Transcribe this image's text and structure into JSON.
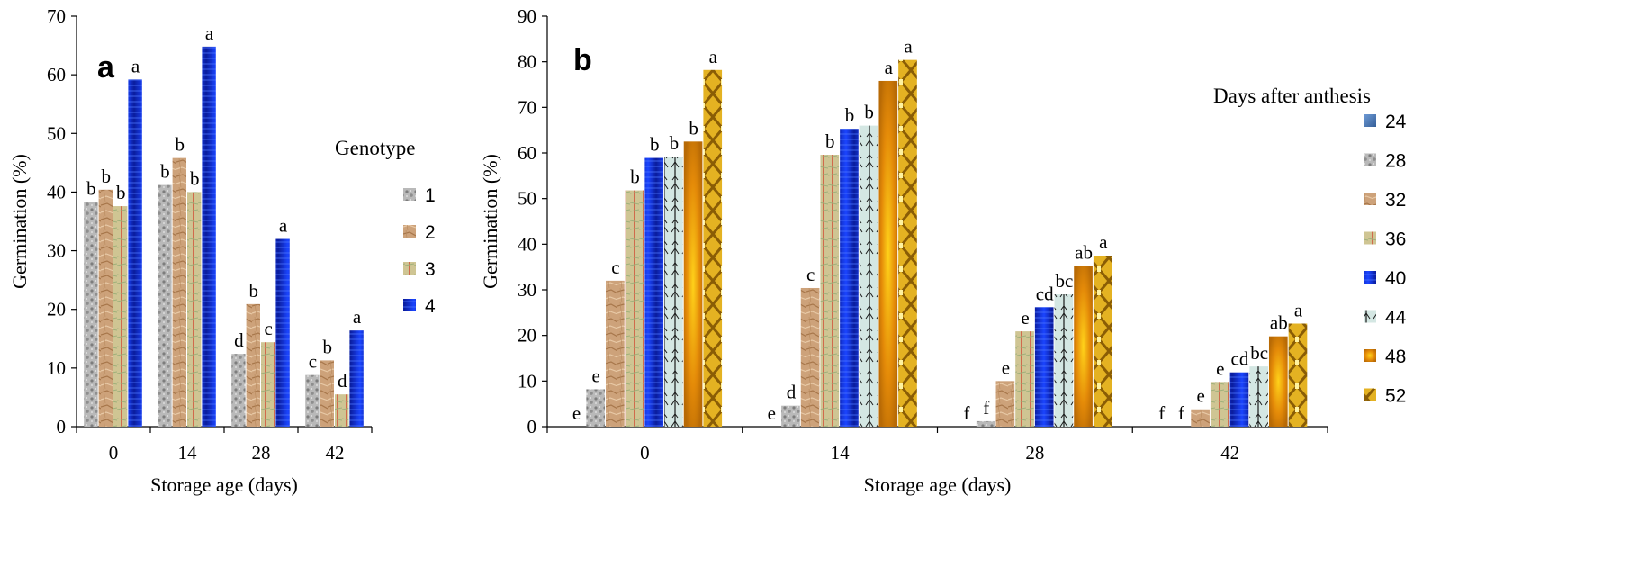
{
  "chart_data": [
    {
      "type": "bar",
      "panel_label": "a",
      "categories": [
        "0",
        "14",
        "28",
        "42"
      ],
      "xlabel": "Storage age (days)",
      "ylabel": "Germination (%)",
      "ylim": [
        0,
        70
      ],
      "yticks": [
        "0",
        "10",
        "20",
        "30",
        "40",
        "50",
        "60",
        "70"
      ],
      "grid": false,
      "legend_title": "Genotype",
      "legend_position": "right",
      "series": [
        {
          "name": "1",
          "values": [
            38.3,
            41.2,
            12.4,
            8.8
          ],
          "letters": [
            "b",
            "b",
            "d",
            "c"
          ],
          "color": "#a4a4a4"
        },
        {
          "name": "2",
          "values": [
            40.4,
            45.8,
            20.9,
            11.3
          ],
          "letters": [
            "b",
            "b",
            "b",
            "b"
          ],
          "color": "#c79c6f"
        },
        {
          "name": "3",
          "values": [
            37.6,
            40.0,
            14.4,
            5.5
          ],
          "letters": [
            "b",
            "b",
            "c",
            "d"
          ],
          "color": "#c9c08a"
        },
        {
          "name": "4",
          "values": [
            59.2,
            64.8,
            32.0,
            16.4
          ],
          "letters": [
            "a",
            "a",
            "a",
            "a"
          ],
          "color": "#0b32d6"
        }
      ]
    },
    {
      "type": "bar",
      "panel_label": "b",
      "categories": [
        "0",
        "14",
        "28",
        "42"
      ],
      "xlabel": "Storage age (days)",
      "ylabel": "Germination (%)",
      "ylim": [
        0,
        90
      ],
      "yticks": [
        "0",
        "10",
        "20",
        "30",
        "40",
        "50",
        "60",
        "70",
        "80",
        "90"
      ],
      "grid": false,
      "legend_title": "Days after anthesis",
      "legend_position": "right",
      "series": [
        {
          "name": "24",
          "values": [
            0,
            0,
            0,
            0
          ],
          "letters": [
            "e",
            "e",
            "f",
            "f"
          ],
          "color": "#4f81bd"
        },
        {
          "name": "28",
          "values": [
            8.2,
            4.6,
            1.2,
            0
          ],
          "letters": [
            "e",
            "d",
            "f",
            "f"
          ],
          "color": "#a6a6a6"
        },
        {
          "name": "32",
          "values": [
            32.0,
            30.4,
            10.0,
            3.8
          ],
          "letters": [
            "c",
            "c",
            "e",
            "e"
          ],
          "color": "#c79c6f"
        },
        {
          "name": "36",
          "values": [
            51.8,
            59.6,
            20.9,
            9.8
          ],
          "letters": [
            "b",
            "b",
            "e",
            "e"
          ],
          "color": "#c9c08a"
        },
        {
          "name": "40",
          "values": [
            58.9,
            65.3,
            26.2,
            11.9
          ],
          "letters": [
            "b",
            "b",
            "cd",
            "cd"
          ],
          "color": "#0b32d6"
        },
        {
          "name": "44",
          "values": [
            59.2,
            66.0,
            29.0,
            13.2
          ],
          "letters": [
            "b",
            "b",
            "bc",
            "bc"
          ],
          "color": "#cfe3e0"
        },
        {
          "name": "48",
          "values": [
            62.5,
            75.8,
            35.2,
            19.8
          ],
          "letters": [
            "b",
            "a",
            "ab",
            "ab"
          ],
          "color": "#e49a10"
        },
        {
          "name": "52",
          "values": [
            78.2,
            80.4,
            37.5,
            22.6
          ],
          "letters": [
            "a",
            "a",
            "a",
            "a"
          ],
          "color": "#d9ac1c"
        }
      ]
    }
  ]
}
